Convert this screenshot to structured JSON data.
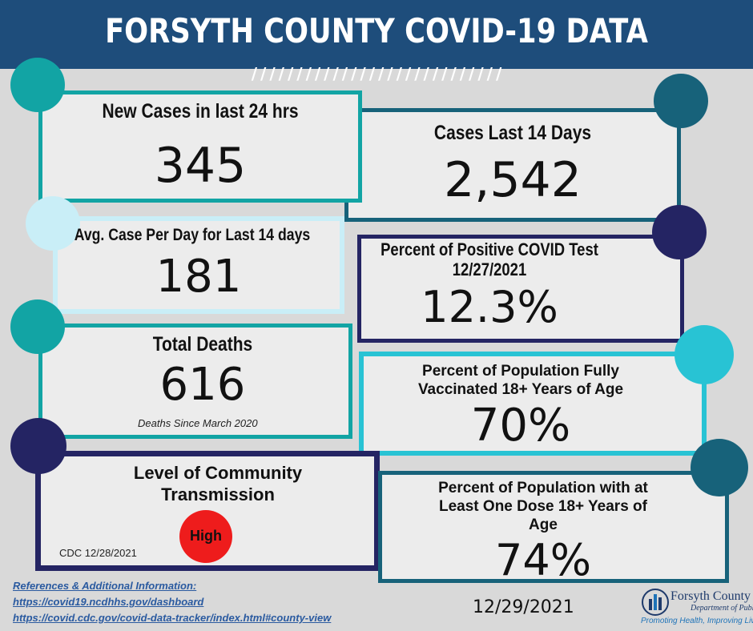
{
  "header": {
    "title": "FORSYTH COUNTY COVID-19 DATA",
    "stripes": "////////////////////////////"
  },
  "colors": {
    "banner": "#1e4d7b",
    "teal": "#12a4a4",
    "dark_teal": "#17627a",
    "navy": "#242463",
    "light_blue": "#c9eef7",
    "cyan": "#28c3d4",
    "high_red": "#ee1c1c"
  },
  "cards": {
    "new_cases": {
      "heading": "New Cases in last 24 hrs",
      "value": "345"
    },
    "cases_14": {
      "heading": "Cases Last 14 Days",
      "value": "2,542"
    },
    "avg_cases": {
      "heading": "Avg. Case Per Day for Last 14 days",
      "value": "181"
    },
    "positive_test": {
      "heading_line1": "Percent of Positive COVID Test",
      "heading_line2": "12/27/2021",
      "value": "12.3%"
    },
    "total_deaths": {
      "heading": "Total Deaths",
      "value": "616",
      "note": "Deaths Since March 2020"
    },
    "fully_vaccinated": {
      "heading_line1": "Percent of Population Fully",
      "heading_line2": "Vaccinated 18+ Years of Age",
      "value": "70%"
    },
    "transmission": {
      "heading_line1": "Level of Community",
      "heading_line2": "Transmission",
      "level": "High",
      "source": "CDC 12/28/2021"
    },
    "one_dose": {
      "heading_line1": "Percent of Population with at",
      "heading_line2": "Least One Dose 18+ Years of",
      "heading_line3": "Age",
      "value": "74%"
    }
  },
  "footer": {
    "refs_title": "References & Additional Information:",
    "link1": "https://covid19.ncdhhs.gov/dashboard",
    "link2": "https://covid.cdc.gov/covid-data-tracker/index.html#county-view",
    "date": "12/29/2021",
    "logo_name": "Forsyth County",
    "logo_dept": "Department of Public Health",
    "logo_tagline": "Promoting Health, Improving Lives"
  }
}
